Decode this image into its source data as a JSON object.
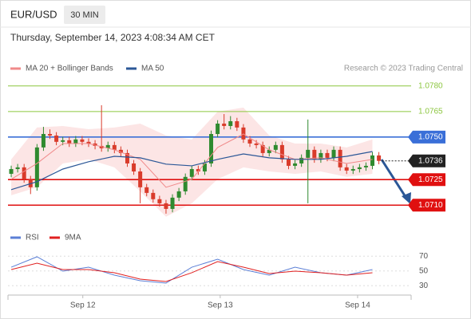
{
  "chart_data": [
    {
      "type": "candlestick",
      "title": "EUR/USD",
      "timeframe": "30 MIN",
      "subtitle": "Thursday, September 14, 2023 4:08:34 AM CET",
      "source": "Research © 2023 Trading Central",
      "categories": [
        null,
        null,
        null,
        null,
        null,
        null,
        null,
        null,
        null,
        null,
        null,
        null,
        null,
        null,
        null,
        null,
        null,
        null,
        null,
        null,
        null,
        null,
        null,
        null,
        null,
        null,
        null,
        null,
        null,
        null,
        null,
        null,
        null,
        null,
        null,
        null,
        null,
        null,
        null,
        null,
        null,
        null,
        null,
        null,
        null,
        null,
        null,
        null,
        null,
        null,
        null,
        null,
        null,
        null,
        null,
        null,
        null,
        null
      ],
      "open": [
        1.07284,
        1.07312,
        1.07322,
        1.07252,
        1.07205,
        1.07439,
        1.07518,
        1.07509,
        1.07472,
        1.07481,
        1.07462,
        1.07486,
        1.07472,
        1.07462,
        1.07448,
        1.07434,
        1.07453,
        1.07425,
        1.07406,
        1.07345,
        1.07298,
        1.07205,
        1.07172,
        1.07135,
        1.07111,
        1.07078,
        1.07144,
        1.07181,
        1.07266,
        1.07312,
        1.07298,
        1.07345,
        1.07518,
        1.07579,
        1.07565,
        1.07593,
        1.07556,
        1.07486,
        1.07462,
        1.07453,
        1.07406,
        1.07425,
        1.07453,
        1.07369,
        1.07331,
        1.07345,
        1.07378,
        1.07425,
        1.07369,
        1.07406,
        1.07378,
        1.07425,
        1.07322,
        1.07303,
        1.07312,
        1.07322,
        1.07331,
        1.07392
      ],
      "high": [
        1.07332,
        1.07342,
        1.07342,
        1.07272,
        1.07459,
        1.0756,
        1.07545,
        1.07529,
        1.07501,
        1.07501,
        1.07506,
        1.07506,
        1.07492,
        1.07482,
        1.07687,
        1.07473,
        1.07473,
        1.07445,
        1.07426,
        1.07365,
        1.07318,
        1.07225,
        1.07192,
        1.07155,
        1.07131,
        1.07164,
        1.07201,
        1.07286,
        1.07332,
        1.07332,
        1.07365,
        1.07538,
        1.07599,
        1.07635,
        1.07623,
        1.07613,
        1.07576,
        1.07506,
        1.07482,
        1.07473,
        1.07445,
        1.07473,
        1.07473,
        1.07389,
        1.07365,
        1.07398,
        1.07603,
        1.07445,
        1.07426,
        1.07426,
        1.07445,
        1.07445,
        1.07342,
        1.07332,
        1.07342,
        1.07351,
        1.07412,
        1.07412
      ],
      "low": [
        1.07264,
        1.07292,
        1.07232,
        1.07165,
        1.07185,
        1.07419,
        1.07489,
        1.07452,
        1.07452,
        1.07442,
        1.07442,
        1.07452,
        1.07442,
        1.07428,
        1.07414,
        1.07414,
        1.07405,
        1.07386,
        1.07325,
        1.07278,
        1.07111,
        1.07152,
        1.07115,
        1.07091,
        1.0705,
        1.07058,
        1.07124,
        1.07161,
        1.07246,
        1.07278,
        1.07278,
        1.07325,
        1.07498,
        1.07545,
        1.07545,
        1.07536,
        1.07466,
        1.07442,
        1.07433,
        1.07386,
        1.07386,
        1.07405,
        1.07349,
        1.07311,
        1.07311,
        1.07325,
        1.07111,
        1.07349,
        1.07349,
        1.07358,
        1.07358,
        1.07302,
        1.07283,
        1.07283,
        1.07292,
        1.07302,
        1.07311,
        1.0734
      ],
      "close": [
        1.07312,
        1.07322,
        1.07252,
        1.07205,
        1.07439,
        1.07518,
        1.07509,
        1.07472,
        1.07481,
        1.07462,
        1.07486,
        1.07472,
        1.07462,
        1.07448,
        1.07434,
        1.07453,
        1.07425,
        1.07406,
        1.07345,
        1.07298,
        1.07205,
        1.07172,
        1.07135,
        1.07111,
        1.07078,
        1.07144,
        1.07181,
        1.07266,
        1.07312,
        1.07298,
        1.07345,
        1.07518,
        1.07579,
        1.07565,
        1.07593,
        1.07556,
        1.07486,
        1.07462,
        1.07453,
        1.07406,
        1.07425,
        1.07453,
        1.07369,
        1.07331,
        1.07345,
        1.07378,
        1.07425,
        1.07369,
        1.07406,
        1.07378,
        1.07425,
        1.07322,
        1.07303,
        1.07312,
        1.07322,
        1.07331,
        1.07392,
        1.0736
      ],
      "up_color": "#2f8a2f",
      "down_color": "#d93b2b",
      "xlim": [
        -0.5,
        62
      ],
      "ylim": [
        1.0697,
        1.0786
      ],
      "overlays": [
        {
          "name": "MA 20 + Bollinger Bands",
          "color": "#f08a8a",
          "x": [
            0,
            4,
            8,
            12,
            16,
            20,
            24,
            28,
            32,
            36,
            40,
            44,
            48,
            52,
            56
          ],
          "values": [
            1.07252,
            1.07345,
            1.07462,
            1.07462,
            1.07425,
            1.07369,
            1.07205,
            1.07252,
            1.07439,
            1.07518,
            1.07425,
            1.07369,
            1.07378,
            1.07345,
            1.07369
          ],
          "upper": [
            1.07369,
            1.07556,
            1.07565,
            1.07546,
            1.07556,
            1.07579,
            1.07509,
            1.07486,
            1.07649,
            1.07673,
            1.07509,
            1.07462,
            1.07462,
            1.07439,
            1.07486
          ],
          "lower": [
            1.07158,
            1.07205,
            1.07345,
            1.07369,
            1.07322,
            1.07181,
            1.07032,
            1.07111,
            1.07252,
            1.07322,
            1.07298,
            1.07284,
            1.07298,
            1.07266,
            1.07284
          ]
        },
        {
          "name": "MA 50",
          "color": "#2b5797",
          "x": [
            0,
            4,
            8,
            12,
            16,
            20,
            24,
            28,
            32,
            36,
            40,
            44,
            48,
            52,
            56
          ],
          "values": [
            1.07191,
            1.07238,
            1.07312,
            1.07355,
            1.07387,
            1.07378,
            1.07341,
            1.07331,
            1.07369,
            1.07401,
            1.07378,
            1.07369,
            1.07369,
            1.07387,
            1.07415
          ]
        }
      ],
      "levels": [
        {
          "value": 1.078,
          "label": "1.0780",
          "color": "#8cc63f",
          "box": false,
          "dotted": false
        },
        {
          "value": 1.0765,
          "label": "1.0765",
          "color": "#8cc63f",
          "box": false,
          "dotted": false
        },
        {
          "value": 1.075,
          "label": "1.0750",
          "color": "#3a6fd8",
          "box": true,
          "dotted": false
        },
        {
          "value": 1.0736,
          "label": "1.0736",
          "color": "#222222",
          "box": true,
          "dotted": true
        },
        {
          "value": 1.0725,
          "label": "1.0725",
          "color": "#e01010",
          "box": true,
          "dotted": false
        },
        {
          "value": 1.071,
          "label": "1.0710",
          "color": "#e01010",
          "box": true,
          "dotted": false
        }
      ]
    },
    {
      "type": "line",
      "series": [
        {
          "name": "RSI",
          "color": "#5b7fd6",
          "x": [
            0,
            4,
            8,
            12,
            16,
            20,
            24,
            28,
            32,
            36,
            40,
            44,
            48,
            52,
            56
          ],
          "values": [
            55.1,
            69.2,
            49.7,
            55.1,
            44.3,
            36.8,
            33.5,
            55.1,
            65.9,
            51.9,
            44.3,
            55.1,
            47.6,
            44.3,
            51.9
          ]
        },
        {
          "name": "9MA",
          "color": "#e02020",
          "x": [
            0,
            4,
            8,
            12,
            16,
            20,
            24,
            28,
            32,
            36,
            40,
            44,
            48,
            52,
            56
          ],
          "values": [
            51.9,
            60.5,
            51.9,
            51.9,
            47.6,
            38.9,
            35.7,
            47.6,
            62.7,
            55.1,
            46.5,
            49.7,
            47.6,
            44.3,
            47.6
          ]
        }
      ],
      "xlim": [
        -0.5,
        62
      ],
      "ylim": [
        20,
        80
      ],
      "yticks": [
        70,
        50,
        30
      ],
      "xticks": [
        {
          "value": 11.1,
          "label": "Sep 12"
        },
        {
          "value": 32.4,
          "label": "Sep 13"
        },
        {
          "value": 53.7,
          "label": "Sep 14"
        }
      ]
    }
  ]
}
